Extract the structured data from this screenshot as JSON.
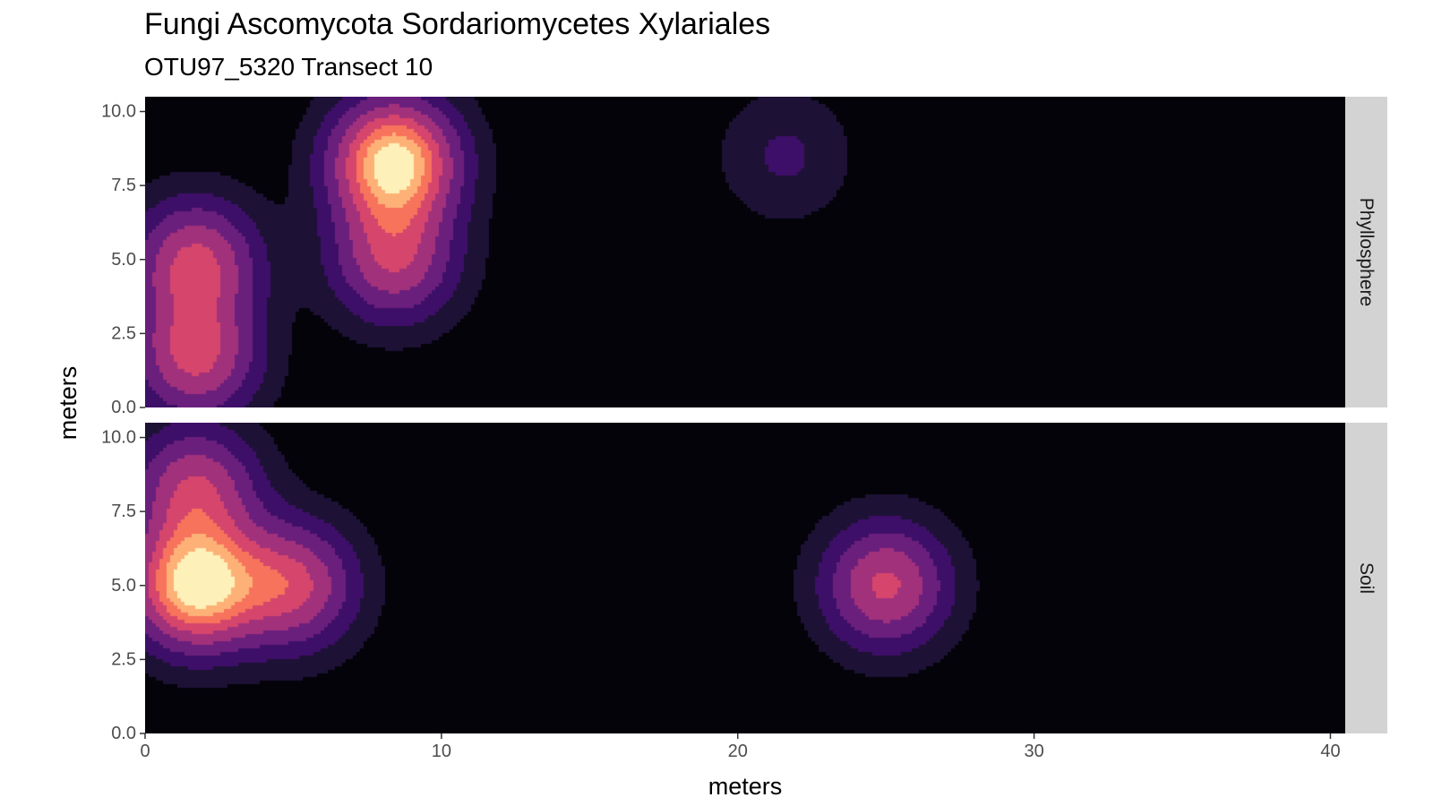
{
  "chart_data": {
    "type": "heatmap",
    "title": "Fungi Ascomycota Sordariomycetes Xylariales",
    "subtitle": "OTU97_5320 Transect 10",
    "xlabel": "meters",
    "ylabel": "meters",
    "xlim": [
      0,
      40.5
    ],
    "ylim": [
      0,
      10.5
    ],
    "x_ticks": [
      "0",
      "10",
      "20",
      "30",
      "40"
    ],
    "x_tick_values": [
      0,
      10,
      20,
      30,
      40
    ],
    "y_ticks": [
      "0.0",
      "2.5",
      "5.0",
      "7.5",
      "10.0"
    ],
    "y_tick_values": [
      0,
      2.5,
      5,
      7.5,
      10
    ],
    "color_scale": "magma",
    "grid": false,
    "facets": [
      {
        "label": "Phyllosphere",
        "hotspots": [
          {
            "x": 1.7,
            "y": 4.9,
            "intensity": 0.6
          },
          {
            "x": 1.7,
            "y": 1.7,
            "intensity": 0.6
          },
          {
            "x": 8.4,
            "y": 8.3,
            "intensity": 1.0
          },
          {
            "x": 8.4,
            "y": 5.0,
            "intensity": 0.55
          },
          {
            "x": 21.6,
            "y": 8.5,
            "intensity": 0.18
          }
        ]
      },
      {
        "label": "Soil",
        "hotspots": [
          {
            "x": 1.7,
            "y": 5.0,
            "intensity": 1.0
          },
          {
            "x": 1.7,
            "y": 8.3,
            "intensity": 0.55
          },
          {
            "x": 5.0,
            "y": 5.0,
            "intensity": 0.6
          },
          {
            "x": 25.0,
            "y": 5.0,
            "intensity": 0.6
          }
        ]
      }
    ]
  }
}
